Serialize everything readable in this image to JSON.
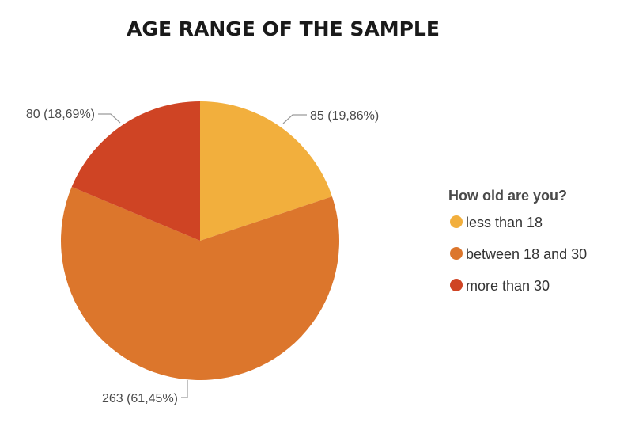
{
  "chart_data": {
    "type": "pie",
    "title": "AGE RANGE OF THE SAMPLE",
    "legend_title": "How old are you?",
    "legend_position": "right",
    "categories": [
      "less than 18",
      "between 18 and 30",
      "more than 30"
    ],
    "values": [
      85,
      263,
      80
    ],
    "percentages": [
      "19,86%",
      "61,45%",
      "18,69%"
    ],
    "data_labels": [
      "85 (19,86%)",
      "263 (61,45%)",
      "80 (18,69%)"
    ],
    "colors": [
      "#F2AF3D",
      "#DC762C",
      "#CF4424"
    ]
  }
}
